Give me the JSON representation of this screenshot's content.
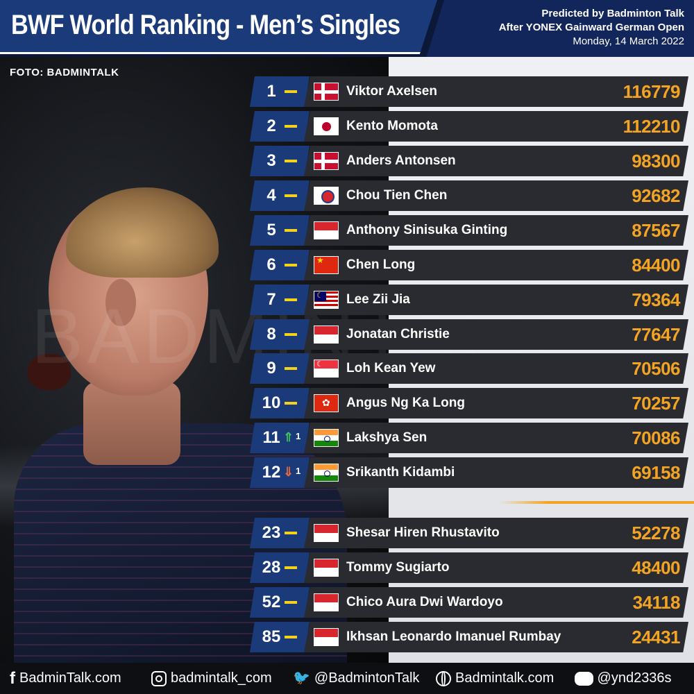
{
  "header": {
    "title": "BWF World Ranking - Men’s Singles",
    "predicted_by": "Predicted by Badminton Talk",
    "after_event": "After YONEX Gainward German Open",
    "date": "Monday, 14 March 2022"
  },
  "photo_credit": "FOTO: BADMINTALK",
  "watermark": "BADMINTALK",
  "colors": {
    "header_blue": "#1a3a7a",
    "points_orange": "#f3a423",
    "row_dark": "#2a2b30",
    "unchanged_yellow": "#f2d21b",
    "up_green": "#3fbf5a",
    "down_orange": "#e8673c"
  },
  "rankings": [
    {
      "rank": "1",
      "change": "flat",
      "change_count": "",
      "flag": "denmark-flag",
      "name": "Viktor Axelsen",
      "points": "116779"
    },
    {
      "rank": "2",
      "change": "flat",
      "change_count": "",
      "flag": "japan-flag",
      "name": "Kento Momota",
      "points": "112210"
    },
    {
      "rank": "3",
      "change": "flat",
      "change_count": "",
      "flag": "denmark-flag",
      "name": "Anders Antonsen",
      "points": "98300"
    },
    {
      "rank": "4",
      "change": "flat",
      "change_count": "",
      "flag": "chinese-taipei-flag",
      "name": "Chou Tien Chen",
      "points": "92682"
    },
    {
      "rank": "5",
      "change": "flat",
      "change_count": "",
      "flag": "indonesia-flag",
      "name": "Anthony Sinisuka Ginting",
      "points": "87567"
    },
    {
      "rank": "6",
      "change": "flat",
      "change_count": "",
      "flag": "china-flag",
      "name": "Chen Long",
      "points": "84400"
    },
    {
      "rank": "7",
      "change": "flat",
      "change_count": "",
      "flag": "malaysia-flag",
      "name": "Lee Zii Jia",
      "points": "79364"
    },
    {
      "rank": "8",
      "change": "flat",
      "change_count": "",
      "flag": "indonesia-flag",
      "name": "Jonatan Christie",
      "points": "77647"
    },
    {
      "rank": "9",
      "change": "flat",
      "change_count": "",
      "flag": "singapore-flag",
      "name": "Loh Kean Yew",
      "points": "70506"
    },
    {
      "rank": "10",
      "change": "flat",
      "change_count": "",
      "flag": "hong-kong-flag",
      "name": "Angus Ng Ka Long",
      "points": "70257"
    },
    {
      "rank": "11",
      "change": "up",
      "change_count": "1",
      "flag": "india-flag",
      "name": "Lakshya Sen",
      "points": "70086"
    },
    {
      "rank": "12",
      "change": "down",
      "change_count": "1",
      "flag": "india-flag",
      "name": "Srikanth Kidambi",
      "points": "69158"
    },
    {
      "rank": "23",
      "change": "flat",
      "change_count": "",
      "flag": "indonesia-flag",
      "name": "Shesar Hiren Rhustavito",
      "points": "52278"
    },
    {
      "rank": "28",
      "change": "flat",
      "change_count": "",
      "flag": "indonesia-flag",
      "name": "Tommy Sugiarto",
      "points": "48400"
    },
    {
      "rank": "52",
      "change": "flat",
      "change_count": "",
      "flag": "indonesia-flag",
      "name": "Chico Aura Dwi Wardoyo",
      "points": "34118"
    },
    {
      "rank": "85",
      "change": "flat",
      "change_count": "",
      "flag": "indonesia-flag",
      "name": "Ikhsan Leonardo Imanuel Rumbay",
      "points": "24431"
    }
  ],
  "footer": {
    "facebook": "BadminTalk.com",
    "instagram": "badmintalk_com",
    "twitter": "@BadmintonTalk",
    "website": "Badmintalk.com",
    "line": "@ynd2336s",
    "line_icon_text": "LINE"
  }
}
